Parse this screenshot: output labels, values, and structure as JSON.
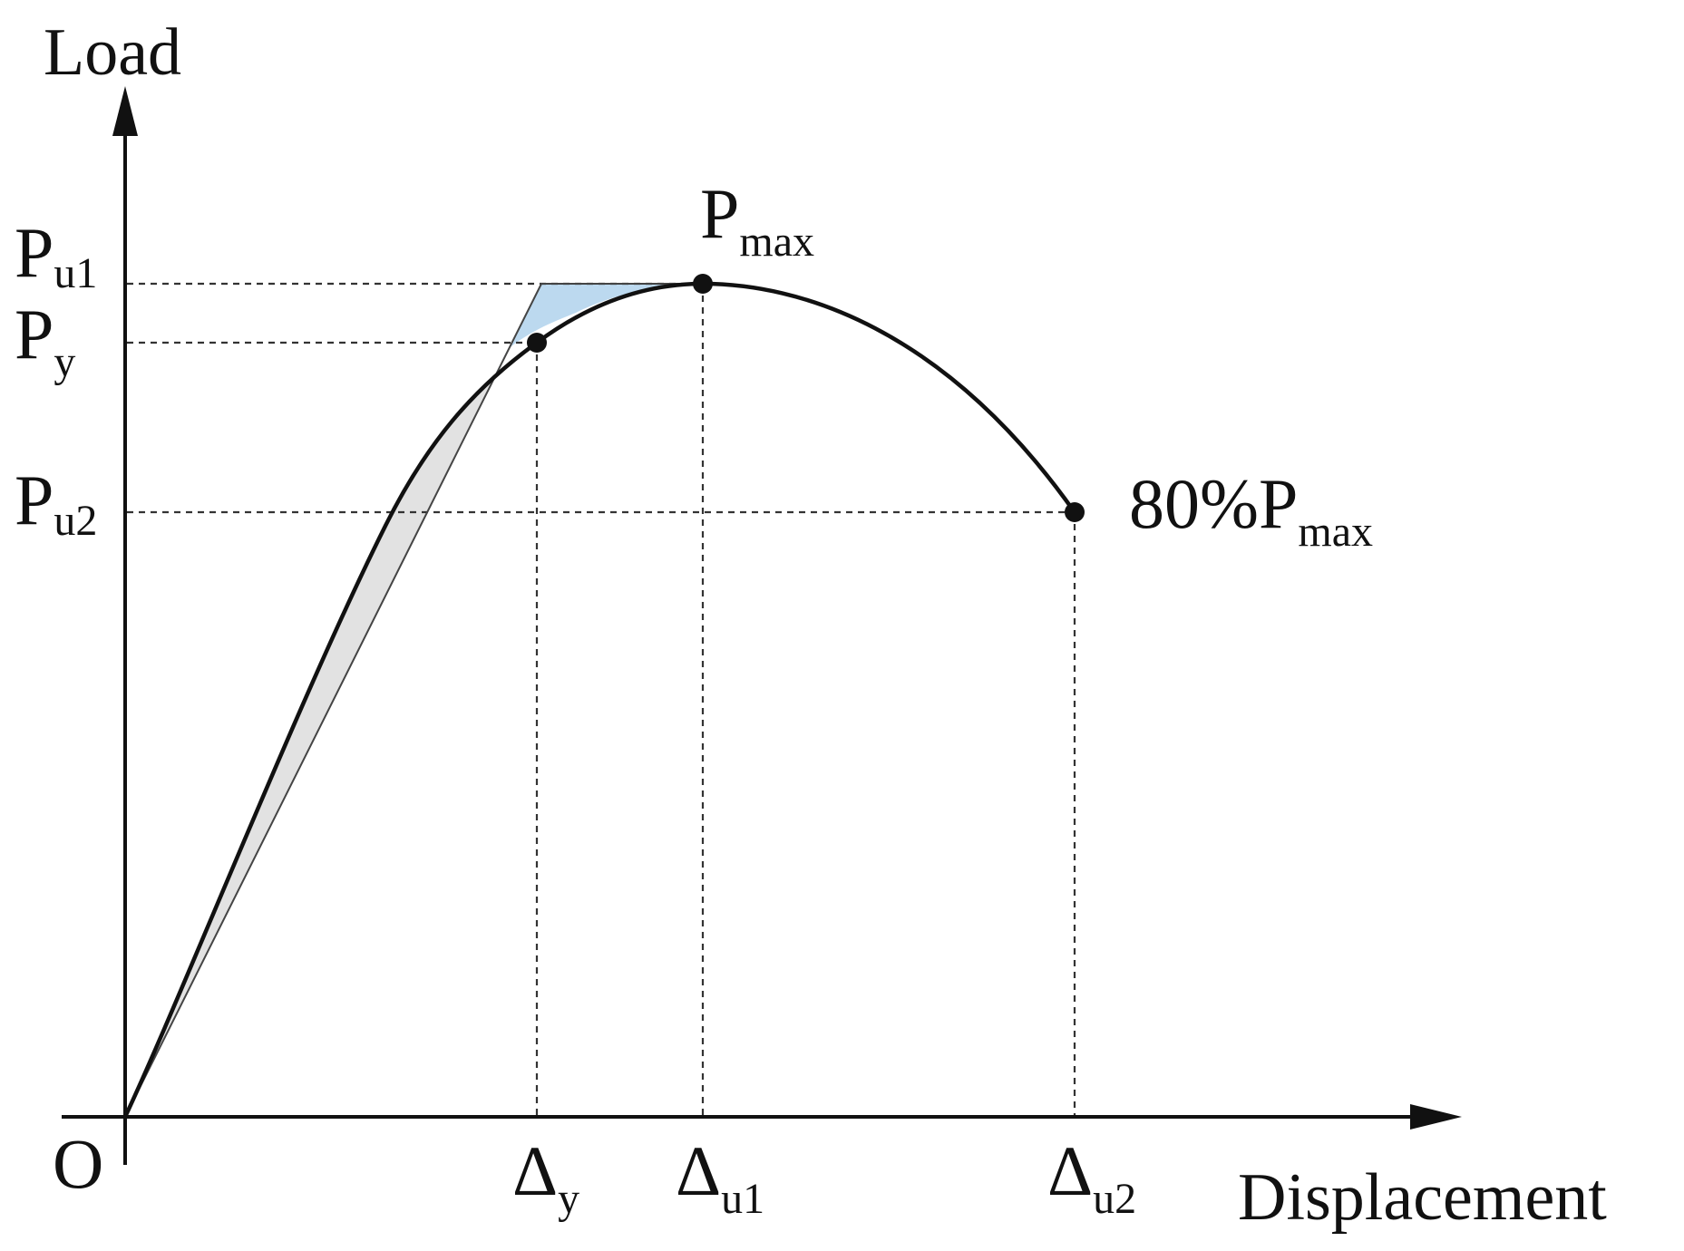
{
  "diagram": {
    "y_axis_label": "Load",
    "x_axis_label": "Displacement",
    "origin_label": "O",
    "y_markers": {
      "pu1": {
        "main": "P",
        "sub": "u1"
      },
      "py": {
        "main": "P",
        "sub": "y"
      },
      "pu2": {
        "main": "P",
        "sub": "u2"
      }
    },
    "x_markers": {
      "dy": {
        "main": "Δ",
        "sub": "y"
      },
      "du1": {
        "main": "Δ",
        "sub": "u1"
      },
      "du2": {
        "main": "Δ",
        "sub": "u2"
      }
    },
    "point_labels": {
      "pmax": {
        "main": "P",
        "sub": "max"
      },
      "p80": {
        "main": "80%P",
        "sub": "max"
      }
    },
    "colors": {
      "curve": "#111111",
      "guide_lines": "#333333",
      "area_above": "#bcd9ef",
      "area_below": "#e2e2e2"
    }
  }
}
